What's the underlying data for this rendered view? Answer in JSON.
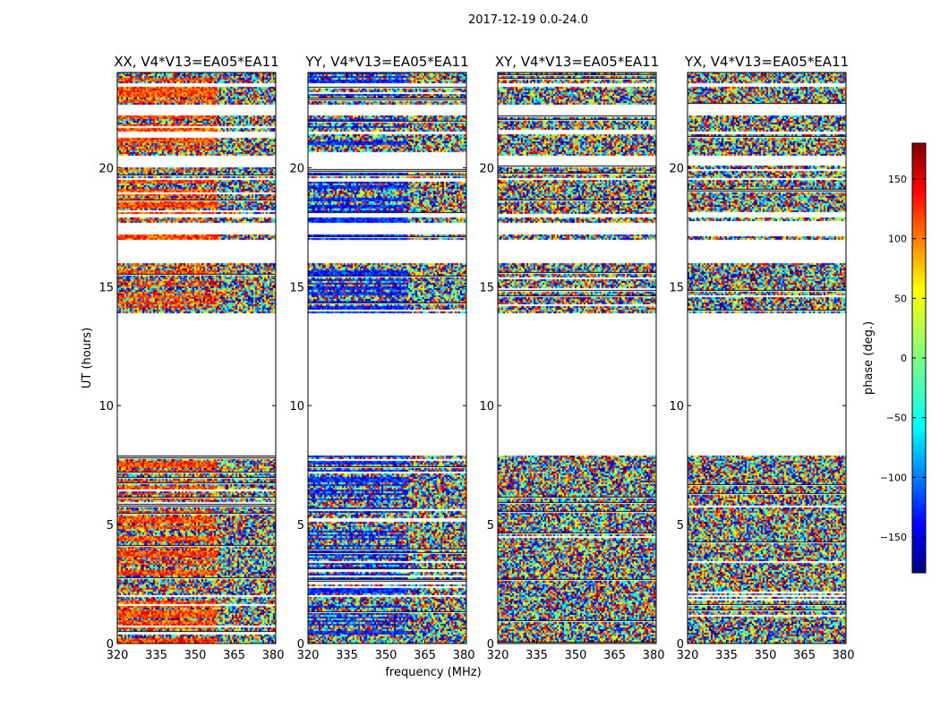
{
  "figure": {
    "suptitle": "2017-12-19 0.0-24.0",
    "xlabel": "frequency (MHz)",
    "ylabel": "UT (hours)"
  },
  "chart_data": {
    "type": "heatmap",
    "panels": [
      {
        "title": "XX, V4*V13=EA05*EA11",
        "style": "orange"
      },
      {
        "title": "YY, V4*V13=EA05*EA11",
        "style": "blue"
      },
      {
        "title": "XY, V4*V13=EA05*EA11",
        "style": "random"
      },
      {
        "title": "YX, V4*V13=EA05*EA11",
        "style": "random"
      }
    ],
    "x": {
      "range": [
        320,
        381
      ],
      "ticks": [
        320,
        335,
        350,
        365,
        380
      ],
      "label": "frequency (MHz)"
    },
    "y": {
      "range": [
        0,
        24
      ],
      "ticks": [
        0,
        5,
        10,
        15,
        20
      ],
      "label": "UT (hours)"
    },
    "colorbar": {
      "label": "phase (deg.)",
      "range": [
        -180,
        180
      ],
      "ticks": [
        -150,
        -100,
        -50,
        0,
        50,
        100,
        150
      ],
      "tick_labels": [
        "−150",
        "−100",
        "−50",
        "0",
        "50",
        "100",
        "150"
      ],
      "colormap": "jet"
    },
    "data_time_blocks_hours": [
      [
        0.0,
        7.9
      ],
      [
        13.9,
        16.0
      ],
      [
        17.0,
        17.2
      ],
      [
        17.7,
        17.9
      ],
      [
        18.1,
        19.5
      ],
      [
        19.6,
        20.1
      ],
      [
        20.5,
        21.4
      ],
      [
        21.5,
        22.2
      ],
      [
        22.7,
        23.4
      ],
      [
        23.6,
        24.0
      ]
    ],
    "empty_time_gaps_hours": [
      [
        7.9,
        13.9
      ],
      [
        16.0,
        17.0
      ],
      [
        17.2,
        17.7
      ],
      [
        20.1,
        20.5
      ],
      [
        22.2,
        22.7
      ],
      [
        23.4,
        23.6
      ]
    ]
  }
}
